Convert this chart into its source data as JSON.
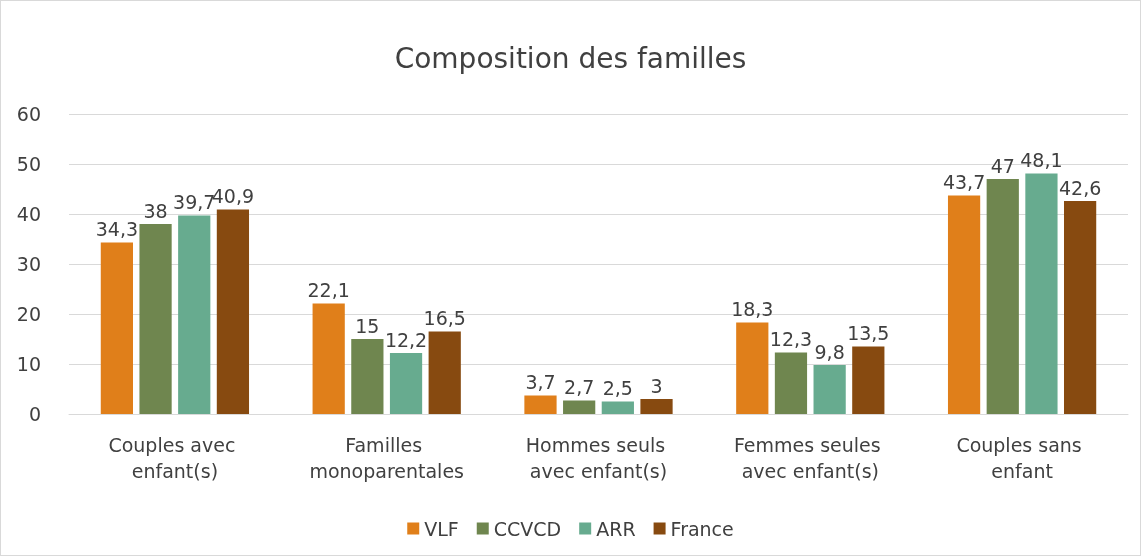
{
  "chart_data": {
    "type": "bar",
    "title": "Composition des familles",
    "categories": [
      "Couples avec enfant(s)",
      "Familles monoparentales",
      "Hommes seuls avec enfant(s)",
      "Femmes seules avec enfant(s)",
      "Couples sans enfant"
    ],
    "series": [
      {
        "name": "VLF",
        "color": "#e07f1a",
        "values": [
          34.3,
          22.1,
          3.7,
          18.3,
          43.7
        ],
        "value_labels": [
          "34,3",
          "22,1",
          "3,7",
          "18,3",
          "43,7"
        ]
      },
      {
        "name": "CCVCD",
        "color": "#6f864f",
        "values": [
          38,
          15,
          2.7,
          12.3,
          47
        ],
        "value_labels": [
          "38",
          "15",
          "2,7",
          "12,3",
          "47"
        ]
      },
      {
        "name": "ARR",
        "color": "#67ab8f",
        "values": [
          39.7,
          12.2,
          2.5,
          9.8,
          48.1
        ],
        "value_labels": [
          "39,7",
          "12,2",
          "2,5",
          "9,8",
          "48,1"
        ]
      },
      {
        "name": "France",
        "color": "#874a10",
        "values": [
          40.9,
          16.5,
          3,
          13.5,
          42.6
        ],
        "value_labels": [
          "40,9",
          "16,5",
          "3",
          "13,5",
          "42,6"
        ]
      }
    ],
    "ylim": [
      0,
      60
    ],
    "yticks": [
      0,
      10,
      20,
      30,
      40,
      50,
      60
    ],
    "grid": "y",
    "legend": "bottom"
  }
}
